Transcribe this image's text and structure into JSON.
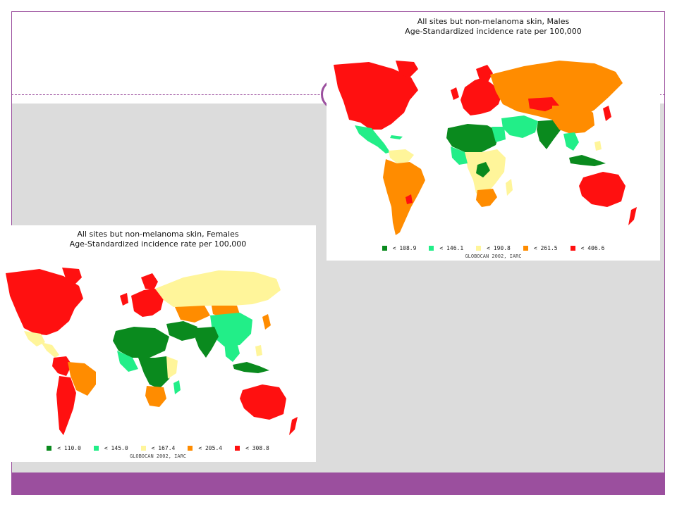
{
  "colors": {
    "frame": "#9b4f9e",
    "panel": "#dcdcdc",
    "dark_green": "#0a8a1e",
    "light_green": "#22ee88",
    "pale_yellow": "#fff59a",
    "orange": "#ff8c00",
    "red": "#ff1010"
  },
  "males_map": {
    "title_line1": "All sites but non-melanoma skin, Males",
    "title_line2": "Age-Standardized incidence rate per 100,000",
    "legend": [
      {
        "label": "< 108.9",
        "color": "#0a8a1e"
      },
      {
        "label": "< 146.1",
        "color": "#22ee88"
      },
      {
        "label": "< 190.8",
        "color": "#fff59a"
      },
      {
        "label": "< 261.5",
        "color": "#ff8c00"
      },
      {
        "label": "< 406.6",
        "color": "#ff1010"
      }
    ],
    "source": "GLOBOCAN 2002, IARC"
  },
  "females_map": {
    "title_line1": "All sites but non-melanoma skin, Females",
    "title_line2": "Age-Standardized incidence rate per 100,000",
    "legend": [
      {
        "label": "< 110.0",
        "color": "#0a8a1e"
      },
      {
        "label": "< 145.0",
        "color": "#22ee88"
      },
      {
        "label": "< 167.4",
        "color": "#fff59a"
      },
      {
        "label": "< 205.4",
        "color": "#ff8c00"
      },
      {
        "label": "< 308.8",
        "color": "#ff1010"
      }
    ],
    "source": "GLOBOCAN 2002, IARC"
  }
}
